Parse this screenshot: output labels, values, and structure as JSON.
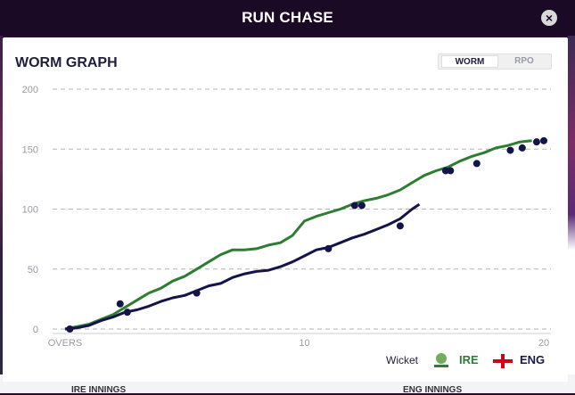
{
  "modal": {
    "title": "RUN CHASE"
  },
  "panel": {
    "title": "WORM GRAPH"
  },
  "toggle": {
    "worm_label": "WORM",
    "rpo_label": "RPO"
  },
  "legend": {
    "wicket_label": "Wicket",
    "ire_label": "IRE",
    "eng_label": "ENG"
  },
  "background": {
    "ire_innings": "IRE INNINGS",
    "eng_innings": "ENG INNINGS"
  },
  "colors": {
    "ire": "#2e7d32",
    "eng": "#14144a",
    "wicket": "#14144a",
    "header_bg": "#1a0a26"
  },
  "chart_data": {
    "type": "line",
    "xlabel": "OVERS",
    "xlim": [
      0,
      20
    ],
    "ylim": [
      0,
      200
    ],
    "x_ticks": [
      {
        "value": 0,
        "label": "OVERS"
      },
      {
        "value": 10,
        "label": "10"
      },
      {
        "value": 20,
        "label": "20"
      }
    ],
    "y_ticks": [
      0,
      50,
      100,
      150,
      200
    ],
    "grid": true,
    "series": [
      {
        "name": "IRE",
        "color": "#2e7d32",
        "points": [
          [
            0,
            0
          ],
          [
            0.5,
            2
          ],
          [
            1,
            4
          ],
          [
            1.5,
            8
          ],
          [
            2,
            12
          ],
          [
            2.5,
            18
          ],
          [
            3,
            24
          ],
          [
            3.5,
            30
          ],
          [
            4,
            34
          ],
          [
            4.5,
            40
          ],
          [
            5,
            44
          ],
          [
            5.5,
            50
          ],
          [
            6,
            56
          ],
          [
            6.5,
            62
          ],
          [
            7,
            66
          ],
          [
            7.5,
            66
          ],
          [
            8,
            67
          ],
          [
            8.5,
            70
          ],
          [
            9,
            72
          ],
          [
            9.5,
            78
          ],
          [
            10,
            90
          ],
          [
            10.5,
            94
          ],
          [
            11,
            97
          ],
          [
            11.5,
            100
          ],
          [
            12,
            104
          ],
          [
            12.5,
            107
          ],
          [
            13,
            109
          ],
          [
            13.5,
            112
          ],
          [
            14,
            116
          ],
          [
            14.5,
            122
          ],
          [
            15,
            128
          ],
          [
            15.5,
            132
          ],
          [
            16,
            135
          ],
          [
            16.5,
            140
          ],
          [
            17,
            144
          ],
          [
            17.5,
            147
          ],
          [
            18,
            151
          ],
          [
            18.5,
            153
          ],
          [
            19,
            156
          ],
          [
            19.5,
            157
          ]
        ],
        "wickets": [
          [
            2.3,
            21
          ],
          [
            12.1,
            103
          ],
          [
            12.4,
            103
          ],
          [
            15.9,
            132
          ],
          [
            16.1,
            132
          ],
          [
            17.2,
            138
          ],
          [
            18.6,
            149
          ],
          [
            19.1,
            151
          ],
          [
            19.7,
            156
          ],
          [
            20,
            157
          ]
        ]
      },
      {
        "name": "ENG",
        "color": "#14144a",
        "points": [
          [
            0,
            0
          ],
          [
            0.5,
            1
          ],
          [
            1,
            3
          ],
          [
            1.5,
            7
          ],
          [
            2,
            10
          ],
          [
            2.5,
            14
          ],
          [
            3,
            16
          ],
          [
            3.5,
            19
          ],
          [
            4,
            23
          ],
          [
            4.5,
            26
          ],
          [
            5,
            28
          ],
          [
            5.5,
            32
          ],
          [
            6,
            36
          ],
          [
            6.5,
            38
          ],
          [
            7,
            43
          ],
          [
            7.5,
            46
          ],
          [
            8,
            48
          ],
          [
            8.5,
            49
          ],
          [
            9,
            52
          ],
          [
            9.5,
            56
          ],
          [
            10,
            61
          ],
          [
            10.5,
            66
          ],
          [
            11,
            68
          ],
          [
            11.5,
            72
          ],
          [
            12,
            76
          ],
          [
            12.5,
            79
          ],
          [
            13,
            83
          ],
          [
            13.5,
            87
          ],
          [
            14,
            92
          ],
          [
            14.5,
            100
          ],
          [
            14.8,
            104
          ]
        ],
        "wickets": [
          [
            0.2,
            0
          ],
          [
            2.6,
            14
          ],
          [
            5.5,
            30
          ],
          [
            11,
            67
          ],
          [
            14,
            86
          ]
        ]
      }
    ]
  }
}
